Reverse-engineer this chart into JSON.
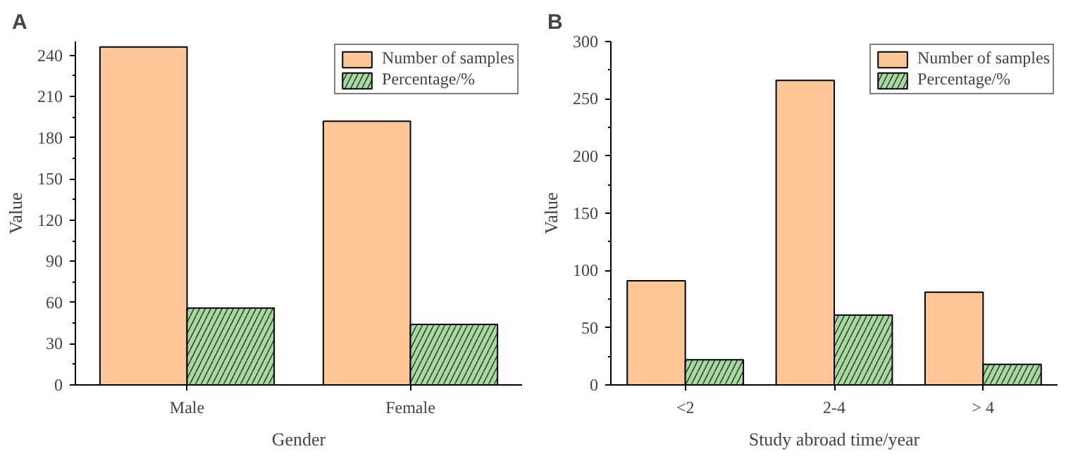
{
  "chart_data": [
    {
      "type": "bar",
      "title": "A",
      "xlabel": "Gender",
      "ylabel": "Value",
      "categories": [
        "Male",
        "Female"
      ],
      "series": [
        {
          "name": "Number of samples",
          "color": "#fdc896",
          "values": [
            246,
            192
          ]
        },
        {
          "name": "Percentage/%",
          "color": "#a6dba0",
          "values": [
            56,
            44
          ]
        }
      ],
      "ylim": [
        0,
        250
      ],
      "yticks": [
        0,
        30,
        60,
        90,
        120,
        150,
        180,
        210,
        240
      ],
      "grid": false,
      "legend": "top right"
    },
    {
      "type": "bar",
      "title": "B",
      "xlabel": "Study abroad time/year",
      "ylabel": "Value",
      "categories": [
        "<2",
        "2-4",
        "> 4"
      ],
      "series": [
        {
          "name": "Number of samples",
          "color": "#fdc896",
          "values": [
            91,
            266,
            81
          ]
        },
        {
          "name": "Percentage/%",
          "color": "#a6dba0",
          "values": [
            22,
            61,
            18
          ]
        }
      ],
      "ylim": [
        0,
        300
      ],
      "yticks": [
        0,
        50,
        100,
        150,
        200,
        250,
        300
      ],
      "grid": false,
      "legend": "top right"
    }
  ]
}
